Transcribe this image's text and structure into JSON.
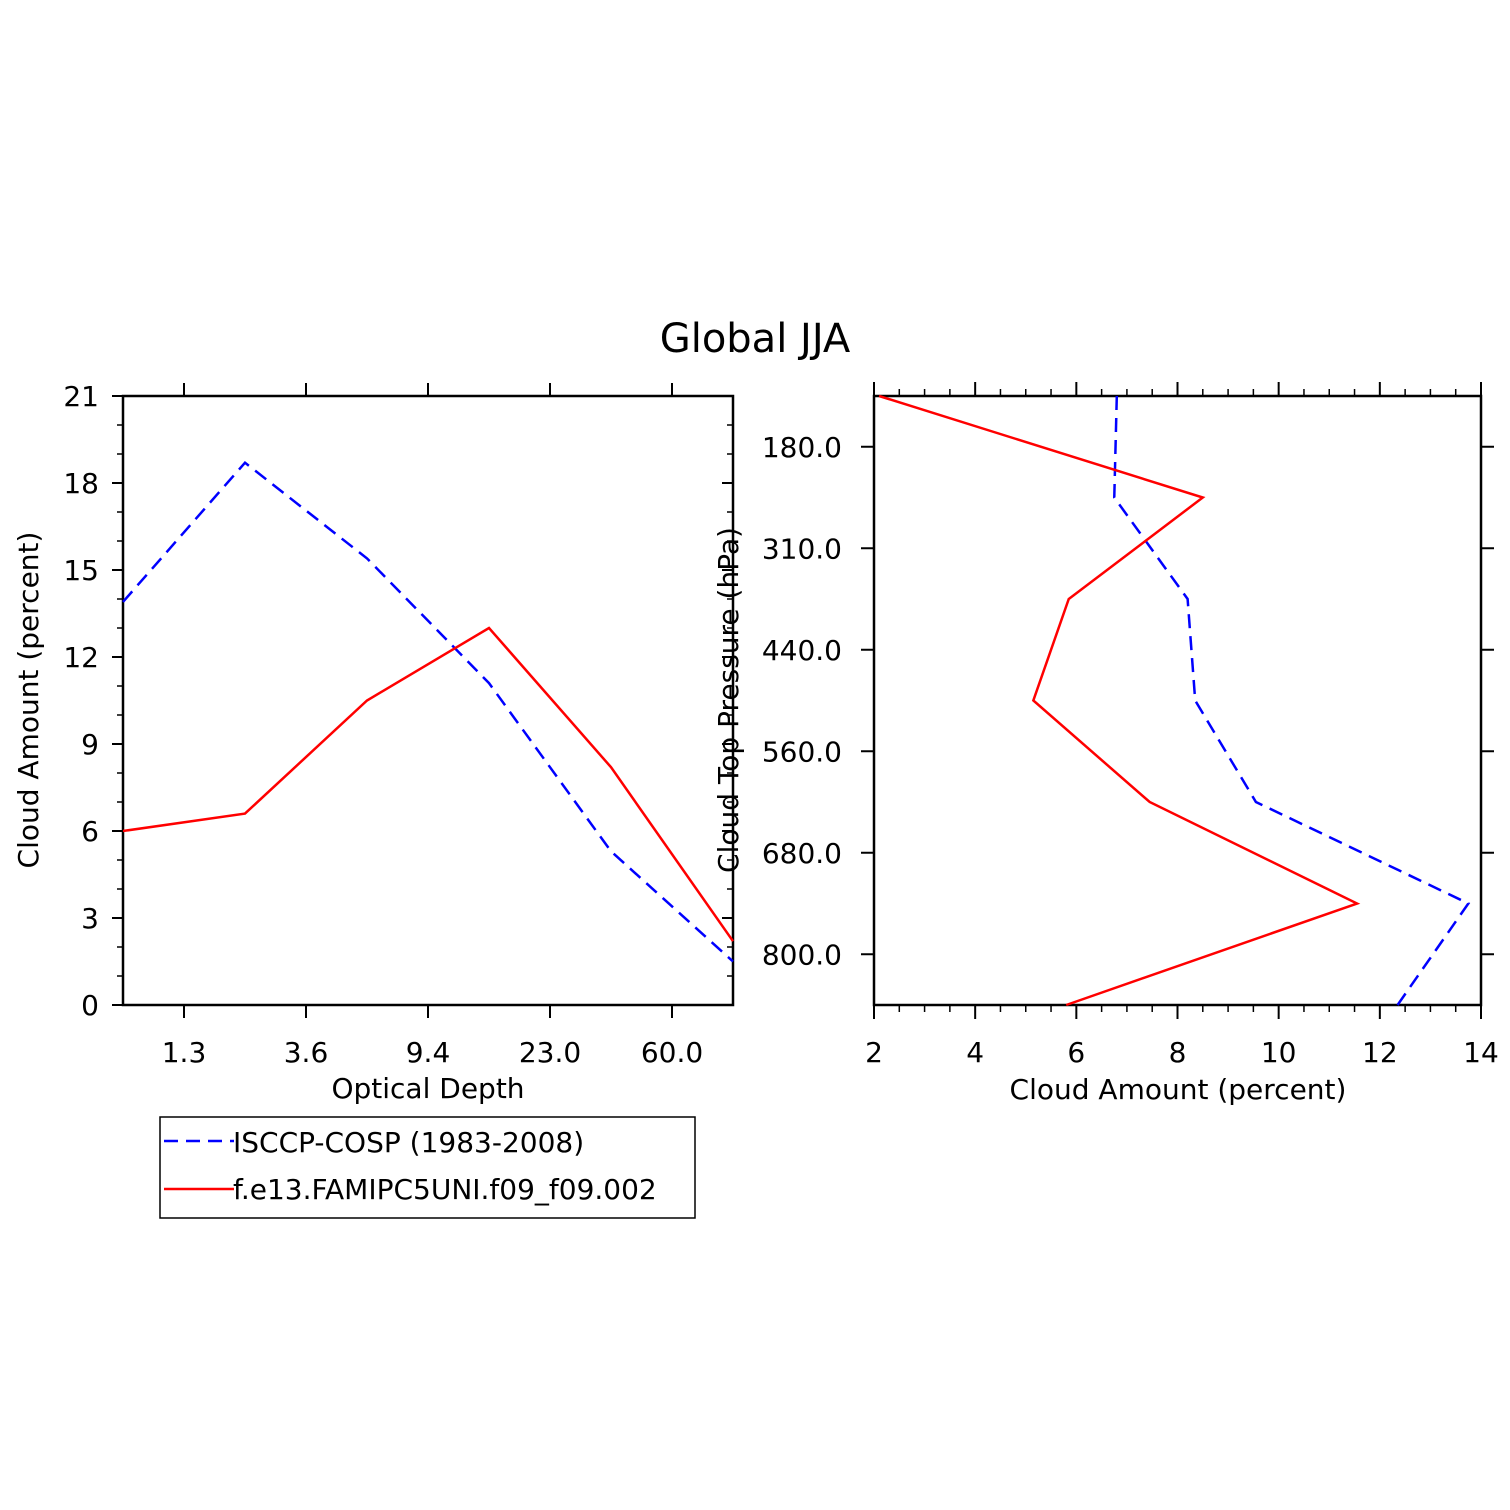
{
  "title": "Global JJA",
  "colors": {
    "obs": "#0000ff",
    "model": "#ff0000",
    "axis": "#000000"
  },
  "legend": [
    {
      "label": "ISCCP-COSP (1983-2008)",
      "style": "dashed",
      "color": "#0000ff"
    },
    {
      "label": "f.e13.FAMIPC5UNI.f09_f09.002",
      "style": "solid",
      "color": "#ff0000"
    }
  ],
  "chart_data": [
    {
      "type": "line",
      "title": "Global JJA",
      "xlabel": "Optical Depth",
      "ylabel": "Cloud Amount (percent)",
      "x_bins": [
        0,
        1,
        2,
        3,
        4,
        5
      ],
      "x_range": [
        0,
        5
      ],
      "x_tick_labels": [
        "1.3",
        "3.6",
        "9.4",
        "23.0",
        "60.0"
      ],
      "x_tick_positions": [
        0.5,
        1.5,
        2.5,
        3.5,
        4.5
      ],
      "ylim": [
        0,
        21
      ],
      "y_ticks": [
        0,
        3,
        6,
        9,
        12,
        15,
        18,
        21
      ],
      "series": [
        {
          "name": "ISCCP-COSP (1983-2008)",
          "values": [
            13.9,
            18.7,
            15.4,
            11.1,
            5.3,
            1.5
          ]
        },
        {
          "name": "f.e13.FAMIPC5UNI.f09_f09.002",
          "values": [
            6.0,
            6.6,
            10.5,
            13.0,
            8.2,
            2.2
          ]
        }
      ]
    },
    {
      "type": "line",
      "xlabel": "Cloud Amount (percent)",
      "ylabel": "Cloud Top Pressure (hPa)",
      "xlim": [
        2,
        14
      ],
      "x_ticks": [
        2,
        4,
        6,
        8,
        10,
        12,
        14
      ],
      "pressure_bins": [
        0,
        1,
        2,
        3,
        4,
        5,
        6
      ],
      "y_range": [
        0,
        6
      ],
      "y_tick_labels": [
        "180.0",
        "310.0",
        "440.0",
        "560.0",
        "680.0",
        "800.0"
      ],
      "y_tick_positions": [
        0.5,
        1.5,
        2.5,
        3.5,
        4.5,
        5.5
      ],
      "series": [
        {
          "name": "ISCCP-COSP (1983-2008)",
          "values": [
            6.8,
            6.75,
            8.2,
            8.35,
            9.55,
            13.75,
            12.35
          ]
        },
        {
          "name": "f.e13.FAMIPC5UNI.f09_f09.002",
          "values": [
            2.1,
            8.5,
            5.85,
            5.15,
            7.45,
            11.55,
            5.8
          ]
        }
      ]
    }
  ]
}
